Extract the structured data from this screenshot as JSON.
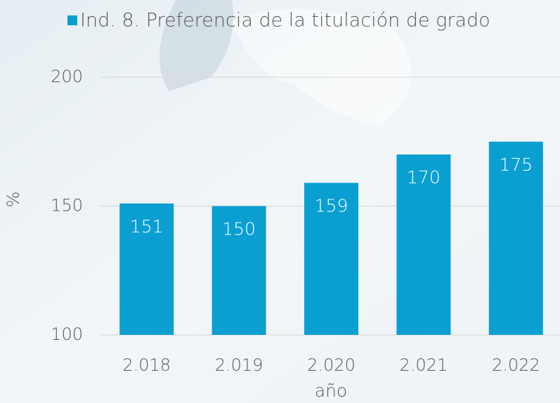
{
  "chart_data": {
    "type": "bar",
    "series": [
      {
        "name": "Ind. 8. Preferencia de la titulación de grado",
        "color": "#0a9fd1",
        "values": [
          151,
          150,
          159,
          170,
          175
        ]
      }
    ],
    "categories": [
      "2.018",
      "2.019",
      "2.020",
      "2.021",
      "2.022"
    ],
    "ylim": [
      100,
      200
    ],
    "yticks": [
      100,
      150,
      200
    ],
    "grid": true,
    "y_label": "%",
    "x_label": "año",
    "legend": "top"
  }
}
